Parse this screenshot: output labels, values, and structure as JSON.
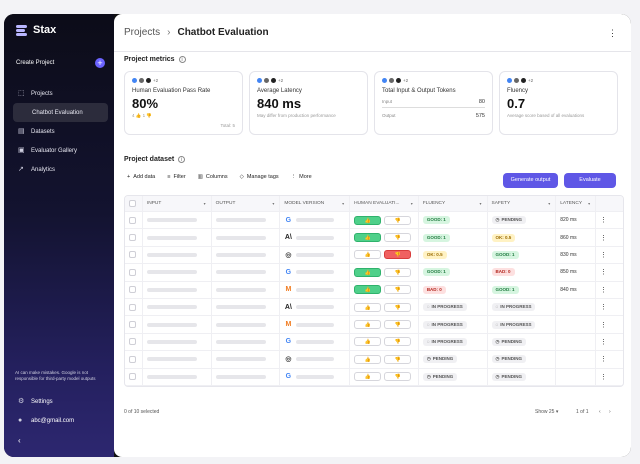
{
  "app": {
    "name": "Stax"
  },
  "sidebar": {
    "create_label": "Create Project",
    "items": [
      {
        "label": "Projects",
        "icon": "projects-icon"
      },
      {
        "label": "Chatbot Evaluation",
        "icon": ""
      },
      {
        "label": "Datasets",
        "icon": "datasets-icon"
      },
      {
        "label": "Evaluator Gallery",
        "icon": "gallery-icon"
      },
      {
        "label": "Analytics",
        "icon": "analytics-icon"
      }
    ],
    "disclaimer": "AI can make mistakes. Google is not responsible for third-party model outputs",
    "settings_label": "Settings",
    "account_label": "abc@gmail.com",
    "collapse_glyph": "‹"
  },
  "header": {
    "crumb_root": "Projects",
    "crumb_sep": "›",
    "crumb_current": "Chatbot Evaluation",
    "menu": "⋮"
  },
  "metrics": {
    "title": "Project metrics",
    "cards": [
      {
        "label": "Human Evaluation Pass Rate",
        "value": "80%",
        "sub_left": "4 👍  1 👎",
        "sub_right": "Total: 5",
        "extra": "+2"
      },
      {
        "label": "Average Latency",
        "value": "840 ms",
        "sub_left": "May differ from production performance",
        "extra": "+2"
      },
      {
        "label": "Total Input & Output Tokens",
        "input_label": "Input",
        "input_value": "80",
        "output_label": "Output",
        "output_value": "575",
        "extra": "+2"
      },
      {
        "label": "Fluency",
        "value": "0.7",
        "sub_left": "Average score based of all evaluations",
        "extra": "+2"
      }
    ]
  },
  "dataset": {
    "title": "Project dataset",
    "toolbar": {
      "add": "Add data",
      "filter": "Filter",
      "columns": "Columns",
      "tags": "Manage tags",
      "more": "More"
    },
    "generate_label": "Generate output",
    "evaluate_label": "Evaluate",
    "columns": [
      "INPUT",
      "OUTPUT",
      "MODEL VERSION",
      "HUMAN EVALUATI...",
      "FLUENCY",
      "SAFETY",
      "LATENCY"
    ],
    "rows": [
      {
        "model": "G",
        "mcolor": "#4285f4",
        "human": "up",
        "fluency": "GOOD: 1",
        "fclass": "good",
        "safety": "PENDING",
        "sclass": "pend",
        "latency": "820 ms"
      },
      {
        "model": "A\\",
        "mcolor": "#222",
        "human": "up",
        "fluency": "GOOD: 1",
        "fclass": "good",
        "safety": "OK: 0.5",
        "sclass": "ok",
        "latency": "860 ms"
      },
      {
        "model": "◎",
        "mcolor": "#444",
        "human": "down",
        "fluency": "OK: 0.5",
        "fclass": "ok",
        "safety": "GOOD: 1",
        "sclass": "good",
        "latency": "830 ms"
      },
      {
        "model": "G",
        "mcolor": "#4285f4",
        "human": "up",
        "fluency": "GOOD: 1",
        "fclass": "good",
        "safety": "BAD: 0",
        "sclass": "bad",
        "latency": "850 ms"
      },
      {
        "model": "M",
        "mcolor": "#f07b1f",
        "human": "up",
        "fluency": "BAD: 0",
        "fclass": "bad",
        "safety": "GOOD: 1",
        "sclass": "good",
        "latency": "840 ms"
      },
      {
        "model": "A\\",
        "mcolor": "#222",
        "human": "none",
        "fluency": "IN PROGRESS",
        "fclass": "prog",
        "safety": "IN PROGRESS",
        "sclass": "prog",
        "latency": ""
      },
      {
        "model": "M",
        "mcolor": "#f07b1f",
        "human": "none",
        "fluency": "IN PROGRESS",
        "fclass": "prog",
        "safety": "IN PROGRESS",
        "sclass": "prog",
        "latency": ""
      },
      {
        "model": "G",
        "mcolor": "#4285f4",
        "human": "none",
        "fluency": "IN PROGRESS",
        "fclass": "prog",
        "safety": "PENDING",
        "sclass": "pend",
        "latency": ""
      },
      {
        "model": "◎",
        "mcolor": "#444",
        "human": "none",
        "fluency": "PENDING",
        "fclass": "pend",
        "safety": "PENDING",
        "sclass": "pend",
        "latency": ""
      },
      {
        "model": "G",
        "mcolor": "#4285f4",
        "human": "none",
        "fluency": "PENDING",
        "fclass": "pend",
        "safety": "PENDING",
        "sclass": "pend",
        "latency": ""
      }
    ],
    "selected_text": "0 of 10 selected",
    "show_label": "Show 25",
    "page_label": "1 of 1"
  },
  "colors": {
    "accent": "#5f57e6",
    "good": "#4fd08a",
    "bad": "#f06060"
  }
}
